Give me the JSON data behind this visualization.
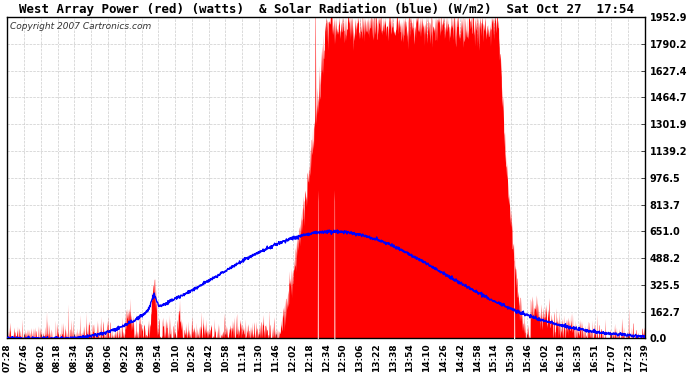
{
  "title": "West Array Power (red) (watts)  & Solar Radiation (blue) (W/m2)  Sat Oct 27  17:54",
  "copyright": "Copyright 2007 Cartronics.com",
  "background_color": "#ffffff",
  "plot_bg_color": "#ffffff",
  "ymin": 0.0,
  "ymax": 1952.9,
  "yticks": [
    0.0,
    162.7,
    325.5,
    488.2,
    651.0,
    813.7,
    976.5,
    1139.2,
    1301.9,
    1464.7,
    1627.4,
    1790.2,
    1952.9
  ],
  "x_labels": [
    "07:28",
    "07:46",
    "08:02",
    "08:18",
    "08:34",
    "08:50",
    "09:06",
    "09:22",
    "09:38",
    "09:54",
    "10:10",
    "10:26",
    "10:42",
    "10:58",
    "11:14",
    "11:30",
    "11:46",
    "12:02",
    "12:18",
    "12:34",
    "12:50",
    "13:06",
    "13:22",
    "13:38",
    "13:54",
    "14:10",
    "14:26",
    "14:42",
    "14:58",
    "15:14",
    "15:30",
    "15:46",
    "16:02",
    "16:19",
    "16:35",
    "16:51",
    "17:07",
    "17:23",
    "17:39"
  ],
  "red_fill_color": "#ff0000",
  "blue_line_color": "#0000ff",
  "white_line_color": "#ffffff",
  "grid_color": "#cccccc",
  "title_color": "#000000",
  "title_fontsize": 9,
  "copyright_fontsize": 6.5,
  "tick_fontsize": 7,
  "border_color": "#000000"
}
